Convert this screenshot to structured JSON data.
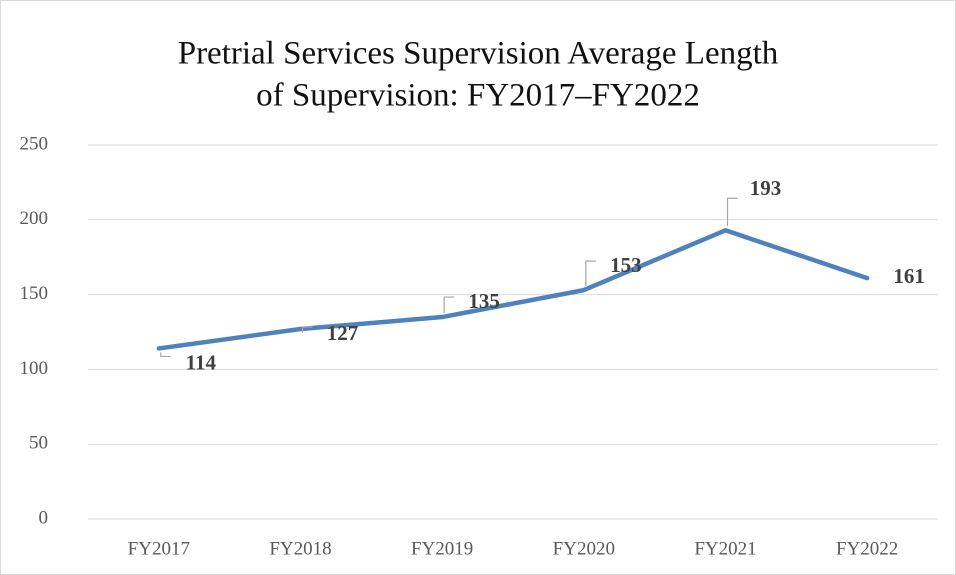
{
  "chart_data": {
    "type": "line",
    "title": [
      "Pretrial Services Supervision Average Length",
      "of Supervision: FY2017–FY2022"
    ],
    "categories": [
      "FY2017",
      "FY2018",
      "FY2019",
      "FY2020",
      "FY2021",
      "FY2022"
    ],
    "series": [
      {
        "name": "Average Length of Supervision",
        "color": "#4f81bd",
        "values": [
          114,
          127,
          135,
          153,
          193,
          161
        ]
      }
    ],
    "ylim": [
      0,
      250
    ],
    "yticks": [
      0,
      50,
      100,
      150,
      200,
      250
    ],
    "grid": true
  }
}
